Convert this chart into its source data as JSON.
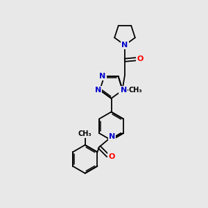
{
  "background_color": "#e8e8e8",
  "atom_colors": {
    "C": "#000000",
    "N": "#0000cc",
    "O": "#ff0000",
    "S": "#cccc00",
    "H": "#008080"
  },
  "figsize": [
    3.0,
    3.0
  ],
  "dpi": 100,
  "lw": 1.3,
  "fs": 8.0,
  "fs_small": 7.0
}
